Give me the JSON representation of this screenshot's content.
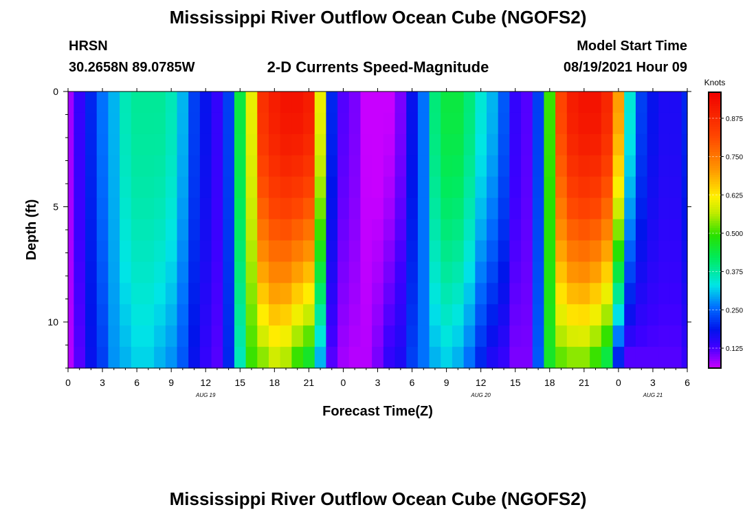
{
  "title_top": "Mississippi River Outflow Ocean Cube (NGOFS2)",
  "title_bottom": "Mississippi River Outflow Ocean Cube (NGOFS2)",
  "station": {
    "name": "HRSN",
    "coords": "30.2658N  89.0785W"
  },
  "model": {
    "label": "Model Start Time",
    "start": "08/19/2021 Hour 09"
  },
  "chart_data": {
    "type": "heatmap",
    "title": "2-D Currents Speed-Magnitude",
    "xlabel": "Forecast Time(Z)",
    "ylabel": "Depth (ft)",
    "x_ticks": [
      "0",
      "3",
      "6",
      "9",
      "12",
      "15",
      "18",
      "21",
      "0",
      "3",
      "6",
      "9",
      "12",
      "15",
      "18",
      "21",
      "0",
      "3",
      "6"
    ],
    "day_labels": [
      {
        "label": "AUG  19",
        "hour": 12
      },
      {
        "label": "AUG  20",
        "hour": 36
      },
      {
        "label": "AUG  21",
        "hour": 51
      }
    ],
    "x_range_hours": [
      0,
      54
    ],
    "y_ticks": [
      "0",
      "5",
      "10"
    ],
    "y_range_ft": [
      0,
      12
    ],
    "colorbar": {
      "label": "Knots",
      "ticks": [
        "0.875",
        "0.750",
        "0.625",
        "0.500",
        "0.375",
        "0.250",
        "0.125"
      ],
      "range": [
        0.06,
        0.96
      ]
    },
    "time_hours": [
      0,
      1,
      2,
      3,
      4,
      5,
      6,
      7,
      8,
      9,
      10,
      11,
      12,
      13,
      14,
      15,
      16,
      17,
      18,
      19,
      20,
      21,
      22,
      23,
      24,
      25,
      26,
      27,
      28,
      29,
      30,
      31,
      32,
      33,
      34,
      35,
      36,
      37,
      38,
      39,
      40,
      41,
      42,
      43,
      44,
      45,
      46,
      47,
      48,
      49,
      50,
      51,
      52,
      53,
      54
    ],
    "depth_ft": [
      0,
      1,
      2,
      3,
      4,
      5,
      6,
      7,
      8,
      9,
      10,
      11,
      12
    ],
    "surface_speed_knots": [
      0.08,
      0.14,
      0.2,
      0.26,
      0.3,
      0.36,
      0.38,
      0.38,
      0.38,
      0.36,
      0.3,
      0.22,
      0.18,
      0.14,
      0.22,
      0.44,
      0.6,
      0.86,
      0.9,
      0.92,
      0.92,
      0.9,
      0.6,
      0.2,
      0.12,
      0.1,
      0.06,
      0.05,
      0.06,
      0.1,
      0.18,
      0.26,
      0.4,
      0.44,
      0.44,
      0.4,
      0.34,
      0.3,
      0.24,
      0.14,
      0.12,
      0.22,
      0.5,
      0.82,
      0.9,
      0.92,
      0.92,
      0.88,
      0.7,
      0.34,
      0.22,
      0.18,
      0.16,
      0.16,
      0.2
    ],
    "bottom_speed_knots": [
      0.07,
      0.12,
      0.18,
      0.22,
      0.28,
      0.3,
      0.32,
      0.32,
      0.3,
      0.28,
      0.24,
      0.18,
      0.14,
      0.12,
      0.2,
      0.36,
      0.5,
      0.54,
      0.58,
      0.56,
      0.5,
      0.46,
      0.3,
      0.12,
      0.08,
      0.07,
      0.07,
      0.1,
      0.14,
      0.16,
      0.22,
      0.26,
      0.3,
      0.32,
      0.3,
      0.26,
      0.2,
      0.16,
      0.14,
      0.1,
      0.1,
      0.24,
      0.46,
      0.52,
      0.54,
      0.54,
      0.5,
      0.44,
      0.2,
      0.12,
      0.12,
      0.12,
      0.12,
      0.12,
      0.14
    ]
  }
}
